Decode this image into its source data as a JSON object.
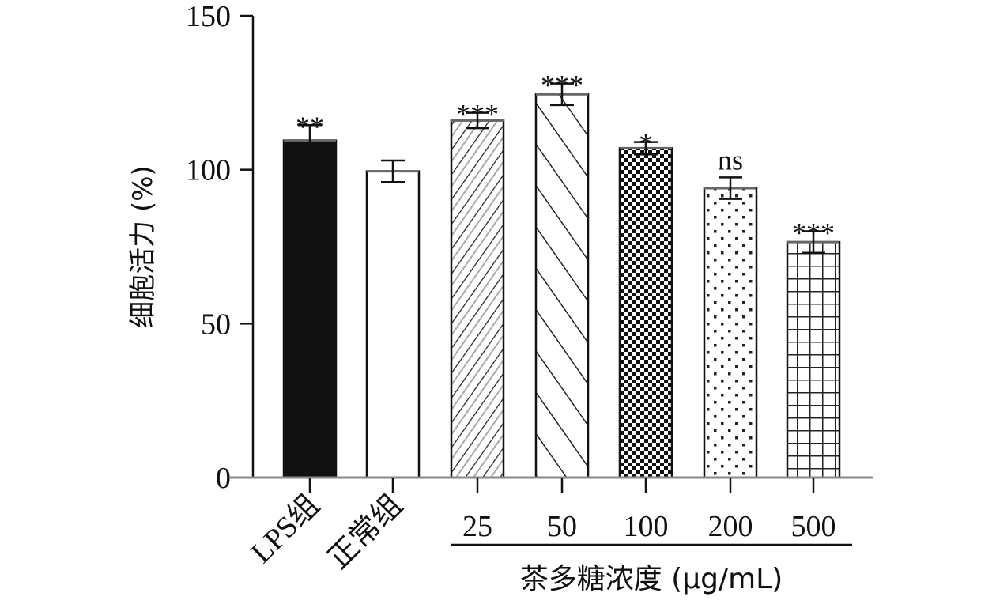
{
  "chart_data": {
    "type": "bar",
    "ylabel": "细胞活力 (%)",
    "ylim": [
      0,
      150
    ],
    "yticks": [
      "0",
      "50",
      "100",
      "150"
    ],
    "categories": [
      "LPS组",
      "正常组",
      "25",
      "50",
      "100",
      "200",
      "500"
    ],
    "values": [
      109.5,
      99.5,
      116,
      124.5,
      107,
      94,
      76.5
    ],
    "errors": [
      5,
      3.5,
      2.5,
      3.5,
      2,
      3.5,
      3.5
    ],
    "significance": [
      "**",
      "",
      "***",
      "***",
      "*",
      "ns",
      "***"
    ],
    "patterns": [
      "solid-black",
      "white",
      "diagonal-light",
      "diagonal-dark",
      "checker",
      "dots",
      "grid"
    ],
    "group_bracket": {
      "label": "茶多糖浓度 (μg/mL)",
      "categories": [
        "25",
        "50",
        "100",
        "200",
        "500"
      ]
    },
    "grid": false,
    "legend": "none"
  }
}
